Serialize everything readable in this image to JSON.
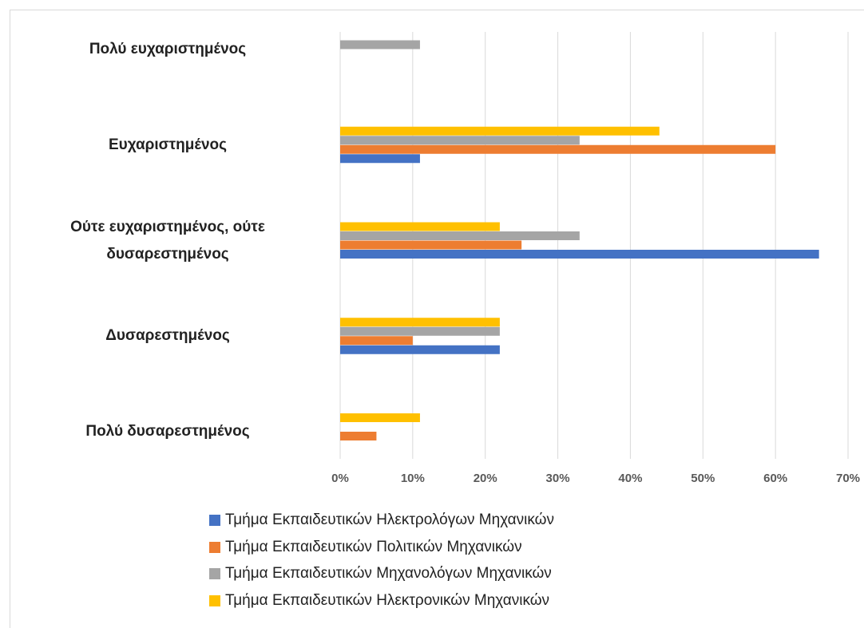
{
  "chart_data": {
    "type": "hbar",
    "categories": [
      "Πολύ ευχαριστημένος",
      "Ευχαριστημένος",
      "Ούτε ευχαριστημένος, ούτε δυσαρεστημένος",
      "Δυσαρεστημένος",
      "Πολύ δυσαρεστημένος"
    ],
    "series": [
      {
        "name": "Τμήμα Εκπαιδευτικών Ηλεκτρολόγων Μηχανικών",
        "color": "#4472c4",
        "values": [
          0,
          11,
          66,
          22,
          0
        ]
      },
      {
        "name": "Τμήμα Εκπαιδευτικών Πολιτικών Μηχανικών",
        "color": "#ed7d31",
        "values": [
          0,
          60,
          25,
          10,
          5
        ]
      },
      {
        "name": "Τμήμα Εκπαιδευτικών Μηχανολόγων Μηχανικών",
        "color": "#a5a5a5",
        "values": [
          11,
          33,
          33,
          22,
          0
        ]
      },
      {
        "name": "Τμήμα Εκπαιδευτικών Ηλεκτρονικών Μηχανικών",
        "color": "#ffc000",
        "values": [
          0,
          44,
          22,
          22,
          11
        ]
      }
    ],
    "xlim": [
      0,
      70
    ],
    "xticks": [
      {
        "value": 0,
        "label": "0%"
      },
      {
        "value": 10,
        "label": "10%"
      },
      {
        "value": 20,
        "label": "20%"
      },
      {
        "value": 30,
        "label": "30%"
      },
      {
        "value": 40,
        "label": "40%"
      },
      {
        "value": 50,
        "label": "50%"
      },
      {
        "value": 60,
        "label": "60%"
      },
      {
        "value": 70,
        "label": "70%"
      }
    ],
    "grid": true,
    "legend": "bottom"
  }
}
